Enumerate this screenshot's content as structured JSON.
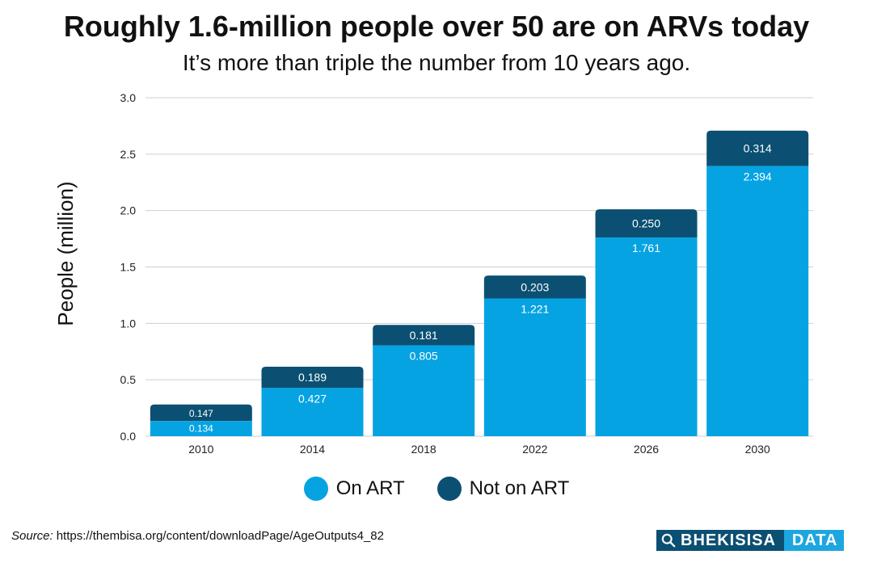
{
  "header": {
    "title": "Roughly 1.6-million people over 50 are on ARVs today",
    "subtitle": "It’s more than triple the number from 10 years ago."
  },
  "chart_data": {
    "type": "bar",
    "stacked": true,
    "categories": [
      "2010",
      "2014",
      "2018",
      "2022",
      "2026",
      "2030"
    ],
    "series": [
      {
        "name": "On ART",
        "color": "#06a3e2",
        "values": [
          0.134,
          0.427,
          0.805,
          1.221,
          1.761,
          2.394
        ]
      },
      {
        "name": "Not on ART",
        "color": "#0b5073",
        "values": [
          0.147,
          0.189,
          0.181,
          0.203,
          0.25,
          0.314
        ]
      }
    ],
    "data_labels": {
      "On ART": [
        "0.134",
        "0.427",
        "0.805",
        "1.221",
        "1.761",
        "2.394"
      ],
      "Not on ART": [
        "0.147",
        "0.189",
        "0.181",
        "0.203",
        "0.250",
        "0.314"
      ]
    },
    "ylabel": "People (million)",
    "xlabel": "",
    "ylim": [
      0,
      3.0
    ],
    "yticks": [
      "0.0",
      "0.5",
      "1.0",
      "1.5",
      "2.0",
      "2.5",
      "3.0"
    ],
    "grid": true,
    "legend_position": "bottom"
  },
  "legend": {
    "items": [
      {
        "label": "On ART",
        "color": "#06a3e2"
      },
      {
        "label": "Not on ART",
        "color": "#0b5073"
      }
    ]
  },
  "footer": {
    "source_label": "Source:",
    "source_url": "https://thembisa.org/content/downloadPage/AgeOutputs4_82",
    "logo_left": "BHEKISISA",
    "logo_right": "DATA"
  }
}
